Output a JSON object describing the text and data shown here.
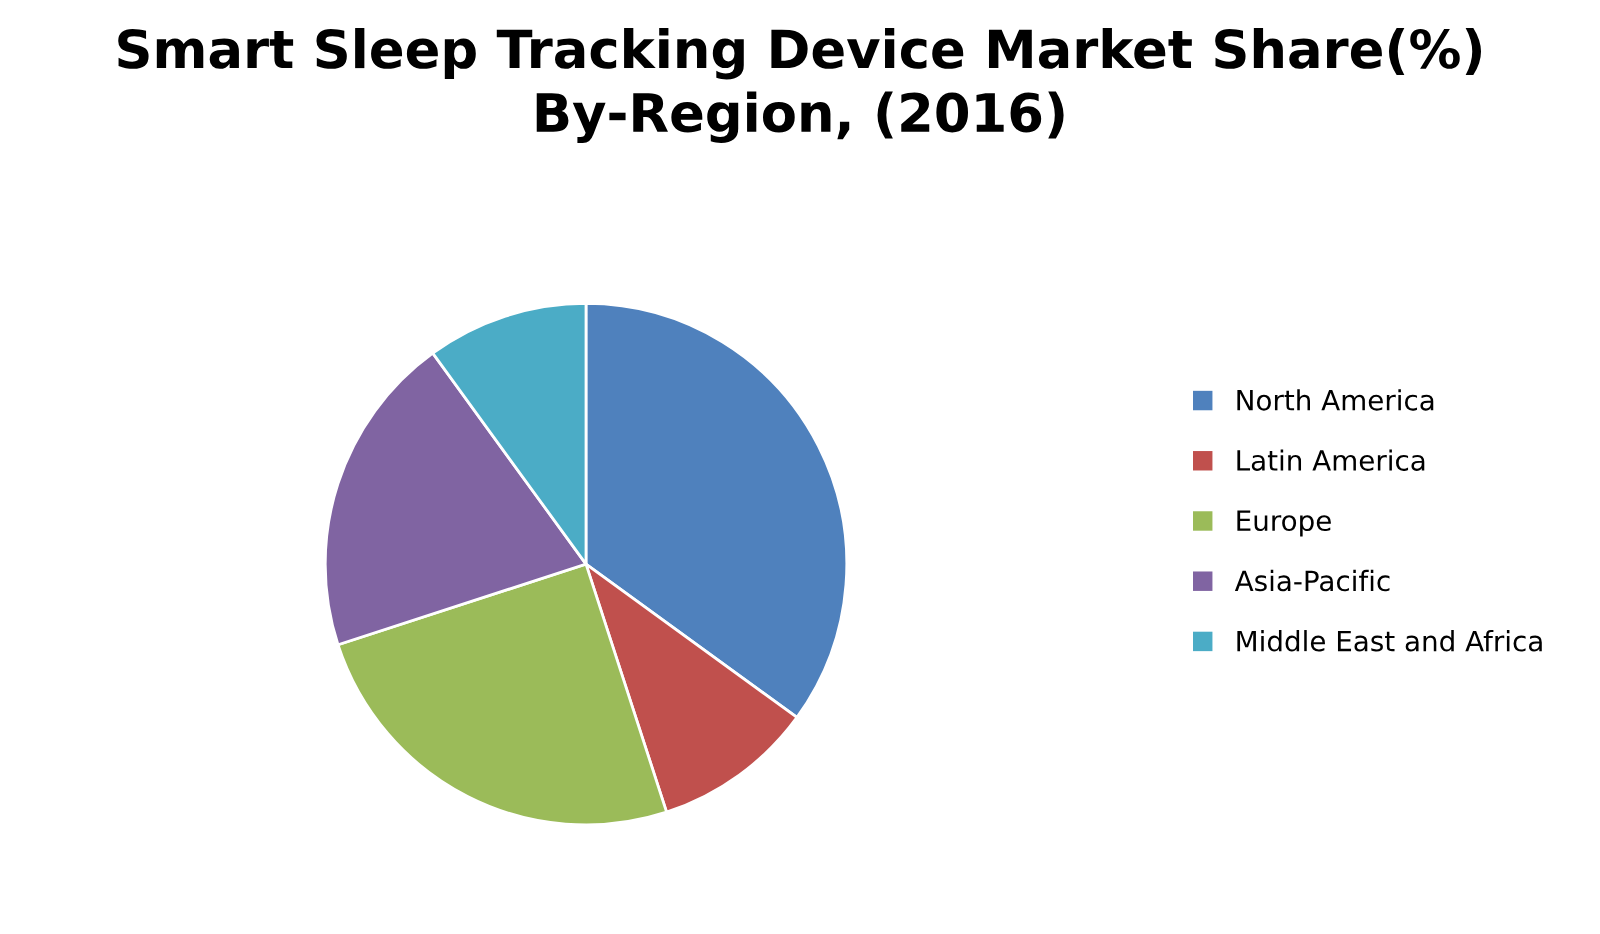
{
  "chart_data": {
    "type": "pie",
    "title": "Smart Sleep Tracking Device Market Share(%)\nBy-Region, (2016)",
    "categories": [
      "North America",
      "Latin America",
      "Europe",
      "Asia-Pacific",
      "Middle East and Africa"
    ],
    "values": [
      35,
      10,
      25,
      20,
      10
    ],
    "colors": [
      "#4f81bd",
      "#c0504d",
      "#9bbb59",
      "#8064a2",
      "#4bacc6"
    ],
    "legend": "right"
  }
}
